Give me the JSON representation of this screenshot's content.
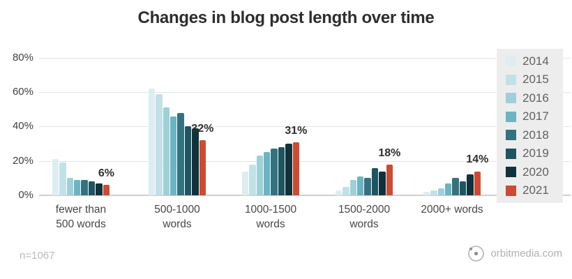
{
  "title": "Changes in blog post length over time",
  "footer": {
    "sample_size": "n=1067",
    "brand": "orbitmedia.com"
  },
  "chart_data": {
    "type": "bar",
    "title": "Changes in blog post length over time",
    "xlabel": "",
    "ylabel": "",
    "ylim": [
      0,
      80
    ],
    "grid": true,
    "legend_position": "right",
    "y_axis": {
      "tick_labels": [
        "0%",
        "20%",
        "40%",
        "60%",
        "80%"
      ],
      "tick_values": [
        0,
        20,
        40,
        60,
        80
      ]
    },
    "categories": [
      "fewer than\n500 words",
      "500-1000\nwords",
      "1000-1500\nwords",
      "1500-2000\nwords",
      "2000+ words"
    ],
    "series": [
      {
        "name": "2014",
        "color": "#ddeef1",
        "values": [
          21,
          62,
          14,
          3,
          2
        ]
      },
      {
        "name": "2015",
        "color": "#c2e1e6",
        "values": [
          19,
          59,
          18,
          5,
          3
        ]
      },
      {
        "name": "2016",
        "color": "#9ed0d8",
        "values": [
          10,
          51,
          23,
          9,
          4
        ]
      },
      {
        "name": "2017",
        "color": "#6cb4c1",
        "values": [
          9,
          46,
          25,
          11,
          7
        ]
      },
      {
        "name": "2018",
        "color": "#35727f",
        "values": [
          9,
          48,
          27,
          10,
          10
        ]
      },
      {
        "name": "2019",
        "color": "#1d5560",
        "values": [
          8,
          40,
          28,
          16,
          8
        ]
      },
      {
        "name": "2020",
        "color": "#0f323c",
        "values": [
          7,
          39,
          30,
          14,
          12
        ]
      },
      {
        "name": "2021",
        "color": "#cc4b32",
        "values": [
          6,
          32,
          31,
          18,
          14
        ]
      }
    ],
    "annotations": {
      "series": "2021",
      "labels": [
        "6%",
        "32%",
        "31%",
        "18%",
        "14%"
      ]
    }
  }
}
